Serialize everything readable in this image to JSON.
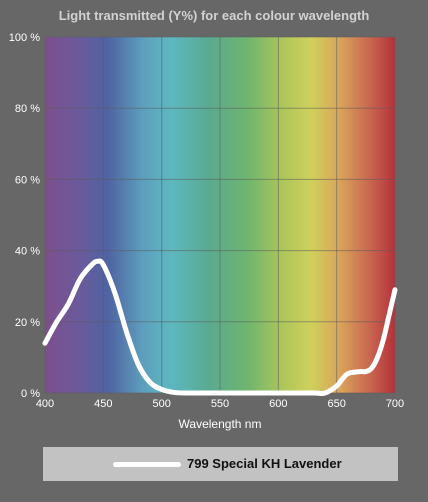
{
  "chart_data": {
    "type": "line",
    "title": "Light transmitted (Y%) for each colour wavelength",
    "xlabel": "Wavelength nm",
    "ylabel": "",
    "xlim": [
      400,
      700
    ],
    "ylim": [
      0,
      100
    ],
    "x_ticks": [
      "400",
      "450",
      "500",
      "550",
      "600",
      "650",
      "700"
    ],
    "y_ticks": [
      "0 %",
      "20 %",
      "40 %",
      "60 %",
      "80 %",
      "100 %"
    ],
    "grid": true,
    "legend_position": "bottom",
    "series": [
      {
        "name": "799 Special KH Lavender",
        "color": "#ffffff",
        "x": [
          400,
          410,
          420,
          430,
          440,
          445,
          450,
          460,
          470,
          480,
          490,
          500,
          510,
          520,
          550,
          600,
          630,
          640,
          650,
          655,
          660,
          670,
          675,
          680,
          685,
          690,
          695,
          700
        ],
        "y": [
          14,
          20,
          25,
          32,
          36,
          37,
          36,
          28,
          17,
          8,
          3,
          1,
          0.2,
          0,
          0,
          0,
          0,
          0,
          2,
          4,
          5.5,
          6,
          6,
          7,
          10,
          15,
          22,
          29
        ]
      }
    ]
  }
}
